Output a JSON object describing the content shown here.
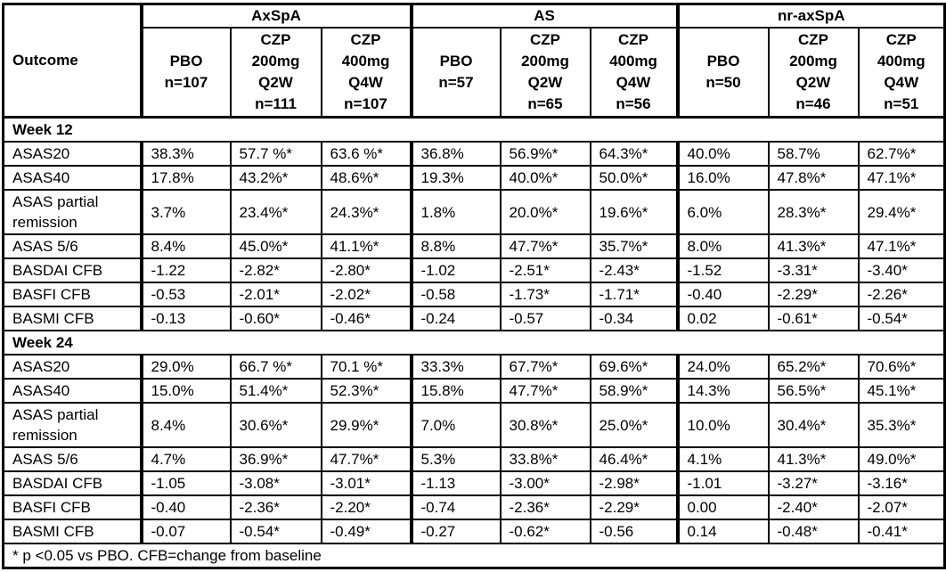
{
  "colors": {
    "border": "#000000",
    "text": "#000000",
    "background": "#ffffff"
  },
  "chart_data": {
    "type": "table",
    "corner_label": "Outcome",
    "groups": [
      {
        "label": "AxSpA",
        "cols": [
          "PBO\nn=107",
          "CZP\n200mg\nQ2W\nn=111",
          "CZP\n400mg\nQ4W\nn=107"
        ]
      },
      {
        "label": "AS",
        "cols": [
          "PBO\nn=57",
          "CZP\n200mg\nQ2W\nn=65",
          "CZP\n400mg\nQ4W\nn=56"
        ]
      },
      {
        "label": "nr-axSpA",
        "cols": [
          "PBO\nn=50",
          "CZP\n200mg\nQ2W\nn=46",
          "CZP\n400mg\nQ4W\nn=51"
        ]
      }
    ],
    "sections": [
      {
        "label": "Week 12",
        "rows": [
          {
            "outcome": "ASAS20",
            "values": [
              "38.3%",
              "57.7 %*",
              "63.6 %*",
              "36.8%",
              "56.9%*",
              "64.3%*",
              "40.0%",
              "58.7%",
              "62.7%*"
            ]
          },
          {
            "outcome": "ASAS40",
            "values": [
              "17.8%",
              "43.2%*",
              "48.6%*",
              "19.3%",
              "40.0%*",
              "50.0%*",
              "16.0%",
              "47.8%*",
              "47.1%*"
            ]
          },
          {
            "outcome": "ASAS partial remission",
            "values": [
              "3.7%",
              "23.4%*",
              "24.3%*",
              "1.8%",
              "20.0%*",
              "19.6%*",
              "6.0%",
              "28.3%*",
              "29.4%*"
            ]
          },
          {
            "outcome": "ASAS 5/6",
            "values": [
              "8.4%",
              "45.0%*",
              "41.1%*",
              "8.8%",
              "47.7%*",
              "35.7%*",
              "8.0%",
              "41.3%*",
              "47.1%*"
            ]
          },
          {
            "outcome": "BASDAI CFB",
            "values": [
              "-1.22",
              "-2.82*",
              "-2.80*",
              "-1.02",
              "-2.51*",
              "-2.43*",
              "-1.52",
              "-3.31*",
              "-3.40*"
            ]
          },
          {
            "outcome": "BASFI CFB",
            "values": [
              "-0.53",
              "-2.01*",
              "-2.02*",
              "-0.58",
              "-1.73*",
              "-1.71*",
              "-0.40",
              "-2.29*",
              "-2.26*"
            ]
          },
          {
            "outcome": "BASMI CFB",
            "values": [
              "-0.13",
              "-0.60*",
              "-0.46*",
              "-0.24",
              "-0.57",
              "-0.34",
              "0.02",
              "-0.61*",
              "-0.54*"
            ]
          }
        ]
      },
      {
        "label": "Week 24",
        "rows": [
          {
            "outcome": "ASAS20",
            "values": [
              "29.0%",
              "66.7 %*",
              "70.1 %*",
              "33.3%",
              "67.7%*",
              "69.6%*",
              "24.0%",
              "65.2%*",
              "70.6%*"
            ]
          },
          {
            "outcome": "ASAS40",
            "values": [
              "15.0%",
              "51.4%*",
              "52.3%*",
              "15.8%",
              "47.7%*",
              "58.9%*",
              "14.3%",
              "56.5%*",
              "45.1%*"
            ]
          },
          {
            "outcome": "ASAS partial remission",
            "values": [
              "8.4%",
              "30.6%*",
              "29.9%*",
              "7.0%",
              "30.8%*",
              "25.0%*",
              "10.0%",
              "30.4%*",
              "35.3%*"
            ]
          },
          {
            "outcome": "ASAS 5/6",
            "values": [
              "4.7%",
              "36.9%*",
              "47.7%*",
              "5.3%",
              "33.8%*",
              "46.4%*",
              "4.1%",
              "41.3%*",
              "49.0%*"
            ]
          },
          {
            "outcome": "BASDAI CFB",
            "values": [
              "-1.05",
              "-3.08*",
              "-3.01*",
              "-1.13",
              "-3.00*",
              "-2.98*",
              "-1.01",
              "-3.27*",
              "-3.16*"
            ]
          },
          {
            "outcome": "BASFI CFB",
            "values": [
              "-0.40",
              "-2.36*",
              "-2.20*",
              "-0.74",
              "-2.36*",
              "-2.29*",
              "0.00",
              "-2.40*",
              "-2.07*"
            ]
          },
          {
            "outcome": "BASMI CFB",
            "values": [
              "-0.07",
              "-0.54*",
              "-0.49*",
              "-0.27",
              "-0.62*",
              "-0.56",
              "0.14",
              "-0.48*",
              "-0.41*"
            ]
          }
        ]
      }
    ],
    "footnote": "* p <0.05 vs PBO. CFB=change from baseline"
  }
}
